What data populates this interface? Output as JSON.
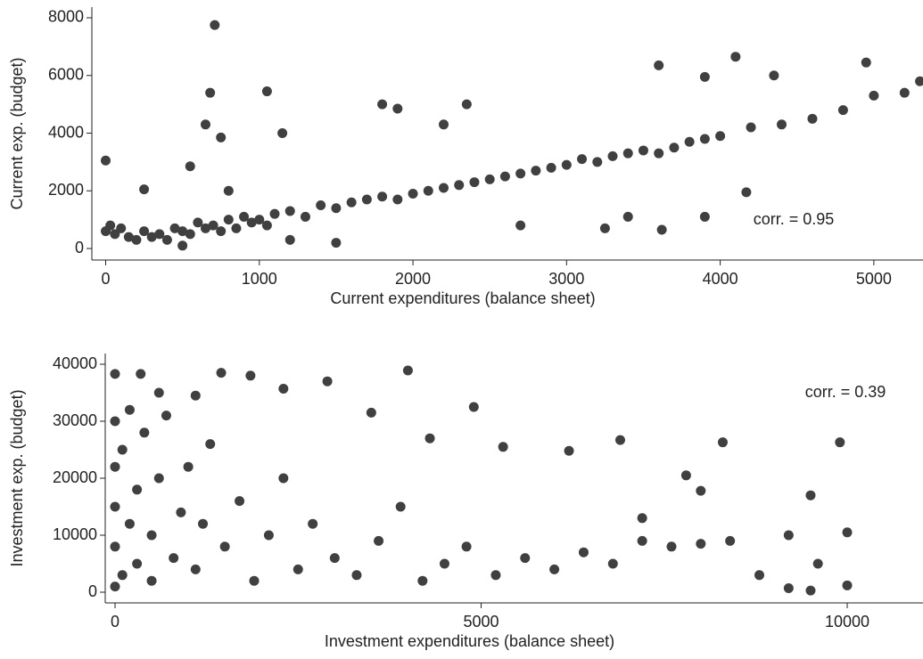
{
  "chart_data": [
    {
      "type": "scatter",
      "xlabel": "Current expenditures (balance sheet)",
      "ylabel": "Current exp. (budget)",
      "annotation": "corr. = 0.95",
      "color": "#404040",
      "xlim": [
        -90,
        5320
      ],
      "ylim": [
        -400,
        8370
      ],
      "xticks": [
        0,
        1000,
        2000,
        3000,
        4000,
        5000
      ],
      "yticks": [
        0,
        2000,
        4000,
        6000,
        8000
      ],
      "x": [
        0,
        30,
        60,
        100,
        150,
        200,
        250,
        300,
        350,
        400,
        450,
        500,
        550,
        600,
        650,
        700,
        750,
        800,
        850,
        900,
        950,
        1000,
        1050,
        1100,
        1200,
        1300,
        1400,
        1500,
        1600,
        1700,
        1800,
        1900,
        2000,
        2100,
        2200,
        2300,
        2400,
        2500,
        2600,
        2700,
        2800,
        2900,
        3000,
        3100,
        3200,
        3300,
        3400,
        3500,
        3600,
        3700,
        3800,
        3900,
        4000,
        4200,
        4400,
        4600,
        4800,
        5000,
        5200,
        5300,
        0,
        710,
        680,
        1050,
        650,
        3600,
        4100,
        4950,
        3900,
        4350,
        1800,
        2200,
        2350,
        1900,
        3250,
        3620,
        3400,
        3900,
        4170,
        2700,
        500,
        750,
        1150,
        250,
        550,
        1500,
        1200,
        800
      ],
      "y": [
        600,
        800,
        500,
        700,
        400,
        300,
        600,
        400,
        500,
        300,
        700,
        600,
        500,
        900,
        700,
        800,
        600,
        1000,
        700,
        1100,
        900,
        1000,
        800,
        1200,
        1300,
        1100,
        1500,
        1400,
        1600,
        1700,
        1800,
        1700,
        1900,
        2000,
        2100,
        2200,
        2300,
        2400,
        2500,
        2600,
        2700,
        2800,
        2900,
        3100,
        3000,
        3200,
        3300,
        3400,
        3300,
        3500,
        3700,
        3800,
        3900,
        4200,
        4300,
        4500,
        4800,
        5300,
        5400,
        5800,
        3050,
        7750,
        5400,
        5450,
        4300,
        6350,
        6650,
        6450,
        5950,
        6000,
        5000,
        4300,
        5000,
        4850,
        700,
        650,
        1100,
        1100,
        1950,
        800,
        100,
        3850,
        4000,
        2050,
        2850,
        200,
        300,
        2000
      ]
    },
    {
      "type": "scatter",
      "xlabel": "Investment expenditures (balance sheet)",
      "ylabel": "Investment exp. (budget)",
      "annotation": "corr. = 0.39",
      "color": "#404040",
      "xlim": [
        -134,
        11035
      ],
      "ylim": [
        -1875,
        41875
      ],
      "xticks": [
        0,
        5000,
        10000
      ],
      "yticks": [
        0,
        10000,
        20000,
        30000,
        40000
      ],
      "x": [
        0,
        0,
        0,
        0,
        0,
        100,
        100,
        200,
        200,
        300,
        300,
        400,
        500,
        500,
        600,
        700,
        800,
        900,
        1000,
        1100,
        1200,
        1300,
        1500,
        1700,
        1900,
        2100,
        2300,
        2500,
        2700,
        3000,
        3300,
        3600,
        3900,
        4200,
        4500,
        4800,
        5200,
        5600,
        6000,
        6400,
        6800,
        7200,
        7600,
        8000,
        8400,
        8800,
        9200,
        9600,
        10000,
        0,
        350,
        1450,
        1850,
        4000,
        2900,
        4900,
        5300,
        6200,
        6900,
        9900,
        8300,
        7800,
        7200,
        8000,
        9500,
        9500,
        9200,
        10000,
        4300,
        3500,
        2300,
        1100,
        600
      ],
      "y": [
        1000,
        8000,
        15000,
        22000,
        30000,
        3000,
        25000,
        12000,
        32000,
        5000,
        18000,
        28000,
        2000,
        10000,
        20000,
        31000,
        6000,
        14000,
        22000,
        4000,
        12000,
        26000,
        8000,
        16000,
        2000,
        10000,
        20000,
        4000,
        12000,
        6000,
        3000,
        9000,
        15000,
        2000,
        5000,
        8000,
        3000,
        6000,
        4000,
        7000,
        5000,
        9000,
        8000,
        8500,
        9000,
        3000,
        10000,
        5000,
        10500,
        38300,
        38300,
        38500,
        38000,
        38900,
        37000,
        32500,
        25500,
        24800,
        26700,
        26300,
        26300,
        20500,
        13000,
        17800,
        17000,
        300,
        700,
        1200,
        27000,
        31500,
        35700,
        34500,
        35000
      ]
    }
  ]
}
